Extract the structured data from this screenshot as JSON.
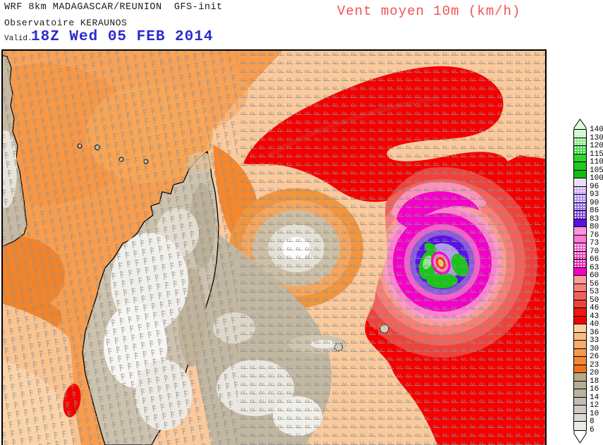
{
  "header": {
    "model_line": "WRF 8km MADAGASCAR/REUNION  GFS-init",
    "source_line": "Observatoire KERAUNOS",
    "valid_label": "Valid.",
    "valid_time": "18Z Wed 05 FEB 2014",
    "field_title": "Vent moyen 10m (km/h)"
  },
  "colors": {
    "header_text": "#1a1a1a",
    "valid_time_blue": "#2b2bd0",
    "field_title_red": "#f25252",
    "map_frame": "#000000",
    "barbs_gray": "#8f8f8f",
    "ocean_calm_peach": "#fbca9c",
    "channel_orange": "#f89d4e",
    "strong_wind_red": "#f50000",
    "cyclone_magenta": "#f500c8",
    "cyclone_violet": "#5a10e8",
    "cyclone_lavender": "#b49aec",
    "eyewall_green": "#17c517",
    "land_calm_gray": "#c6baa2"
  },
  "legend": {
    "above_max_color": "#d9fbd9",
    "below_min_color": "#ffffff",
    "labels": [
      "140",
      "130",
      "120",
      "115",
      "110",
      "105",
      "100",
      "96",
      "93",
      "90",
      "86",
      "83",
      "80",
      "76",
      "73",
      "70",
      "66",
      "63",
      "60",
      "56",
      "53",
      "50",
      "46",
      "43",
      "40",
      "36",
      "33",
      "30",
      "26",
      "23",
      "20",
      "18",
      "16",
      "14",
      "12",
      "10",
      "8",
      "6"
    ],
    "cells": [
      {
        "color": "#c8f7c8",
        "speckled": true
      },
      {
        "color": "#8deb8d",
        "speckled": true
      },
      {
        "color": "#4cdc4c",
        "speckled": true
      },
      {
        "color": "#2fd32f",
        "speckled": false
      },
      {
        "color": "#1fc91f",
        "speckled": false
      },
      {
        "color": "#12bd12",
        "speckled": false
      },
      {
        "color": "#e3d7fa",
        "speckled": true
      },
      {
        "color": "#cbb0f3",
        "speckled": true
      },
      {
        "color": "#b292ec",
        "speckled": true
      },
      {
        "color": "#9a71e5",
        "speckled": true
      },
      {
        "color": "#8350dc",
        "speckled": true
      },
      {
        "color": "#5a10e8",
        "speckled": false
      },
      {
        "color": "#ff93dd",
        "speckled": false
      },
      {
        "color": "#fb7ad3",
        "speckled": false
      },
      {
        "color": "#f360c9",
        "speckled": true
      },
      {
        "color": "#eb4abf",
        "speckled": true
      },
      {
        "color": "#e334b5",
        "speckled": true
      },
      {
        "color": "#f500c8",
        "speckled": false
      },
      {
        "color": "#f99f97",
        "speckled": false
      },
      {
        "color": "#f5827b",
        "speckled": false
      },
      {
        "color": "#f0635c",
        "speckled": false
      },
      {
        "color": "#eb443e",
        "speckled": false
      },
      {
        "color": "#f01815",
        "speckled": false
      },
      {
        "color": "#f50000",
        "speckled": false
      },
      {
        "color": "#fbcf9e",
        "speckled": false
      },
      {
        "color": "#f9bd83",
        "speckled": false
      },
      {
        "color": "#f8ab69",
        "speckled": false
      },
      {
        "color": "#f6994e",
        "speckled": false
      },
      {
        "color": "#f48634",
        "speckled": false
      },
      {
        "color": "#f1731a",
        "speckled": false
      },
      {
        "color": "#b6aa8c",
        "speckled": false
      },
      {
        "color": "#b7ad97",
        "speckled": false
      },
      {
        "color": "#b9b2a3",
        "speckled": false
      },
      {
        "color": "#c2bdb3",
        "speckled": false
      },
      {
        "color": "#cecac2",
        "speckled": false
      },
      {
        "color": "#dcd9d4",
        "speckled": false
      },
      {
        "color": "#ebeae6",
        "speckled": false
      }
    ]
  },
  "map_features": {
    "landmasses": [
      "mozambique-coast",
      "madagascar",
      "comoros-islands",
      "reunion-island",
      "mauritius-island"
    ],
    "phenomena": [
      "tropical-cyclone",
      "strong-wind-band",
      "wind-barbs"
    ]
  }
}
